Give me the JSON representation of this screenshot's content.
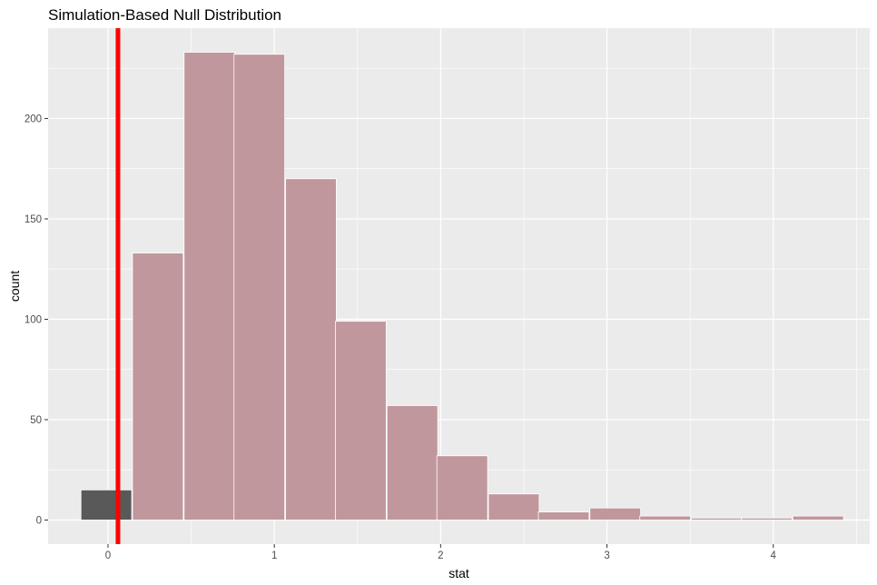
{
  "chart_data": {
    "type": "bar",
    "title": "Simulation-Based Null Distribution",
    "xlabel": "stat",
    "ylabel": "count",
    "xlim": [
      -0.36,
      4.58
    ],
    "ylim": [
      -12,
      245
    ],
    "x_ticks": [
      0,
      1,
      2,
      3,
      4
    ],
    "y_ticks": [
      0,
      50,
      100,
      150,
      200
    ],
    "bin_width": 0.305,
    "bars": [
      {
        "x": -0.01,
        "count": 15,
        "shaded": false
      },
      {
        "x": 0.3,
        "count": 133,
        "shaded": true
      },
      {
        "x": 0.61,
        "count": 233,
        "shaded": true
      },
      {
        "x": 0.91,
        "count": 232,
        "shaded": true
      },
      {
        "x": 1.22,
        "count": 170,
        "shaded": true
      },
      {
        "x": 1.52,
        "count": 99,
        "shaded": true
      },
      {
        "x": 1.83,
        "count": 57,
        "shaded": true
      },
      {
        "x": 2.13,
        "count": 32,
        "shaded": true
      },
      {
        "x": 2.44,
        "count": 13,
        "shaded": true
      },
      {
        "x": 2.74,
        "count": 4,
        "shaded": true
      },
      {
        "x": 3.05,
        "count": 6,
        "shaded": true
      },
      {
        "x": 3.35,
        "count": 2,
        "shaded": true
      },
      {
        "x": 3.66,
        "count": 1,
        "shaded": true
      },
      {
        "x": 3.96,
        "count": 1,
        "shaded": true
      },
      {
        "x": 4.27,
        "count": 2,
        "shaded": true
      }
    ],
    "observed_stat": 0.06,
    "colors": {
      "panel_bg": "#ebebeb",
      "grid": "#ffffff",
      "bar_shaded": "#c0979c",
      "bar_unshaded": "#595959",
      "bar_edge": "#ffffff",
      "observed_line": "#ff0000"
    },
    "grid": true,
    "legend": "none"
  }
}
